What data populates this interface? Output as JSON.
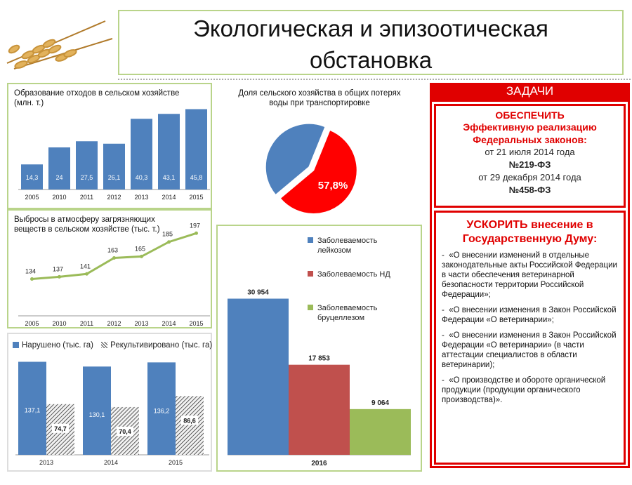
{
  "title": "Экологическая и эпизоотическая обстановка",
  "title_lines": [
    "Экологическая и эпизоотическая",
    "обстановка"
  ],
  "tasks": {
    "header": "ЗАДАЧИ",
    "box1": {
      "heading1": "ОБЕСПЕЧИТЬ",
      "heading2": "Эффективную реализацию Федеральных законов:",
      "line1": "от 21 июля 2014 года",
      "law1": "№219-ФЗ",
      "line2": "от 29 декабря 2014 года",
      "law2": "№458-ФЗ"
    },
    "box2": {
      "heading": "УСКОРИТЬ внесение в Государственную Думу:",
      "items": [
        "«О внесении изменений в отдельные законодательные акты Российской Федерации в части обеспечения ветеринарной безопасности территории Российской Федерации»;",
        "«О внесении изменения в Закон Российской Федерации «О ветеринарии»;",
        "«О внесении изменения в Закон Российской Федерации «О ветеринарии» (в части аттестации специалистов в области ветеринарии);",
        "«О производстве и обороте органической продукции (продукции органического производства)»."
      ]
    }
  },
  "colors": {
    "blue": "#4f81bd",
    "red": "#c0504d",
    "green": "#9bbb59",
    "pie_red": "#ff0000",
    "accent_red": "#e00000",
    "frame_green": "#b9d48a"
  },
  "chart_data": [
    {
      "type": "bar",
      "title": "Образование отходов в сельском хозяйстве (млн. т.)",
      "categories": [
        "2005",
        "2010",
        "2011",
        "2012",
        "2013",
        "2014",
        "2015"
      ],
      "values": [
        14.3,
        24,
        27.5,
        26.1,
        40.3,
        43.1,
        45.8
      ],
      "value_labels": [
        "14,3",
        "24",
        "27,5",
        "26,1",
        "40,3",
        "43,1",
        "45,8"
      ],
      "ylim": [
        0,
        48
      ]
    },
    {
      "type": "line",
      "title": "Выбросы в атмосферу загрязняющих веществ в сельском хозяйстве (тыс. т.)",
      "categories": [
        "2005",
        "2010",
        "2011",
        "2012",
        "2013",
        "2014",
        "2015"
      ],
      "values": [
        134,
        137,
        141,
        163,
        165,
        185,
        197
      ],
      "value_labels": [
        "134",
        "137",
        "141",
        "163",
        "165",
        "185",
        "197"
      ],
      "ylim": [
        120,
        205
      ]
    },
    {
      "type": "bar",
      "legend": [
        "Нарушено (тыс. га)",
        "Рекультивировано (тыс. га)"
      ],
      "categories": [
        "2013",
        "2014",
        "2015"
      ],
      "series": [
        {
          "name": "Нарушено (тыс. га)",
          "values": [
            137.1,
            130.1,
            136.2
          ],
          "labels": [
            "137,1",
            "130,1",
            "136,2"
          ]
        },
        {
          "name": "Рекультивировано (тыс. га)",
          "values": [
            74.7,
            70.4,
            86.6
          ],
          "labels": [
            "74,7",
            "70,4",
            "86,6"
          ]
        }
      ],
      "ylim": [
        0,
        150
      ]
    },
    {
      "type": "pie",
      "title": "Доля сельского хозяйства в общих потерях воды при транспортировке",
      "slices": [
        {
          "label": "57,8%",
          "value": 57.8
        },
        {
          "label": "",
          "value": 42.2
        }
      ]
    },
    {
      "type": "bar",
      "categories": [
        "2016"
      ],
      "series": [
        {
          "name": "Заболеваемость лейкозом",
          "value": 30954,
          "label": "30 954"
        },
        {
          "name": "Заболеваемость НД",
          "value": 17853,
          "label": "17 853"
        },
        {
          "name": "Заболеваемость бруцеллезом",
          "value": 9064,
          "label": "9 064"
        }
      ],
      "legend_lines": [
        [
          "Заболеваемость",
          "лейкозом"
        ],
        [
          "Заболеваемость НД"
        ],
        [
          "Заболеваемость",
          "бруцеллезом"
        ]
      ],
      "ylim": [
        0,
        32000
      ]
    }
  ]
}
